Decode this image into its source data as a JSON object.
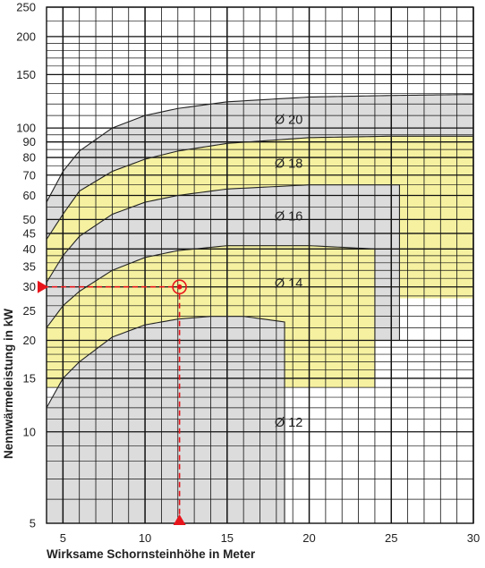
{
  "chart_data": {
    "type": "area",
    "xlabel": "Wirksame Schornsteinhöhe in Meter",
    "ylabel": "Nennwärmeleistung in kW",
    "x_scale": "linear",
    "y_scale": "log",
    "xlim": [
      4,
      30
    ],
    "ylim": [
      5,
      250
    ],
    "x_ticks": [
      5,
      10,
      15,
      20,
      25,
      30
    ],
    "y_ticks": [
      5,
      10,
      15,
      20,
      25,
      30,
      35,
      40,
      45,
      50,
      60,
      70,
      80,
      90,
      100,
      150,
      200,
      250
    ],
    "grid": true,
    "colors": {
      "gray_region": "#dcdcdc",
      "yellow_region": "#f5f1a0",
      "grid": "#111111",
      "marker": "#e8141b"
    },
    "regions": [
      {
        "name": "Ø 20",
        "color": "gray",
        "x_end": 30,
        "upper": [
          [
            4,
            57
          ],
          [
            5,
            72
          ],
          [
            6,
            84
          ],
          [
            8,
            100
          ],
          [
            10,
            110
          ],
          [
            12,
            116
          ],
          [
            15,
            122
          ],
          [
            20,
            126.5
          ],
          [
            25,
            128
          ],
          [
            30,
            129
          ]
        ],
        "lower_floor": 27.5
      },
      {
        "name": "Ø 18",
        "color": "yellow",
        "x_end": 30,
        "upper": [
          [
            4,
            43
          ],
          [
            5,
            52
          ],
          [
            6,
            62
          ],
          [
            8,
            72
          ],
          [
            10,
            79
          ],
          [
            12,
            84
          ],
          [
            15,
            89
          ],
          [
            20,
            93
          ],
          [
            25,
            94
          ],
          [
            30,
            94
          ]
        ],
        "lower_floor": 27.5
      },
      {
        "name": "Ø 16",
        "color": "gray",
        "x_end": 25.5,
        "upper": [
          [
            4,
            31
          ],
          [
            5,
            38
          ],
          [
            6,
            44
          ],
          [
            8,
            52
          ],
          [
            10,
            57
          ],
          [
            12,
            60
          ],
          [
            15,
            63
          ],
          [
            20,
            65
          ],
          [
            25.5,
            65
          ]
        ],
        "lower_floor": 20
      },
      {
        "name": "Ø 14",
        "color": "yellow",
        "x_end": 24,
        "upper": [
          [
            4,
            22
          ],
          [
            5,
            26
          ],
          [
            6,
            29
          ],
          [
            8,
            34
          ],
          [
            10,
            37.5
          ],
          [
            12,
            39.5
          ],
          [
            15,
            41
          ],
          [
            20,
            41
          ],
          [
            24,
            40
          ]
        ],
        "lower_floor": 14
      },
      {
        "name": "Ø 12",
        "color": "gray",
        "x_end": 18.5,
        "upper": [
          [
            4,
            12
          ],
          [
            5,
            15
          ],
          [
            6,
            17
          ],
          [
            8,
            20.5
          ],
          [
            10,
            22.5
          ],
          [
            12,
            23.5
          ],
          [
            14,
            24
          ],
          [
            16,
            24
          ],
          [
            18.5,
            23
          ]
        ],
        "lower_floor": 5
      }
    ],
    "example_point": {
      "x": 12.1,
      "y": 30
    }
  }
}
